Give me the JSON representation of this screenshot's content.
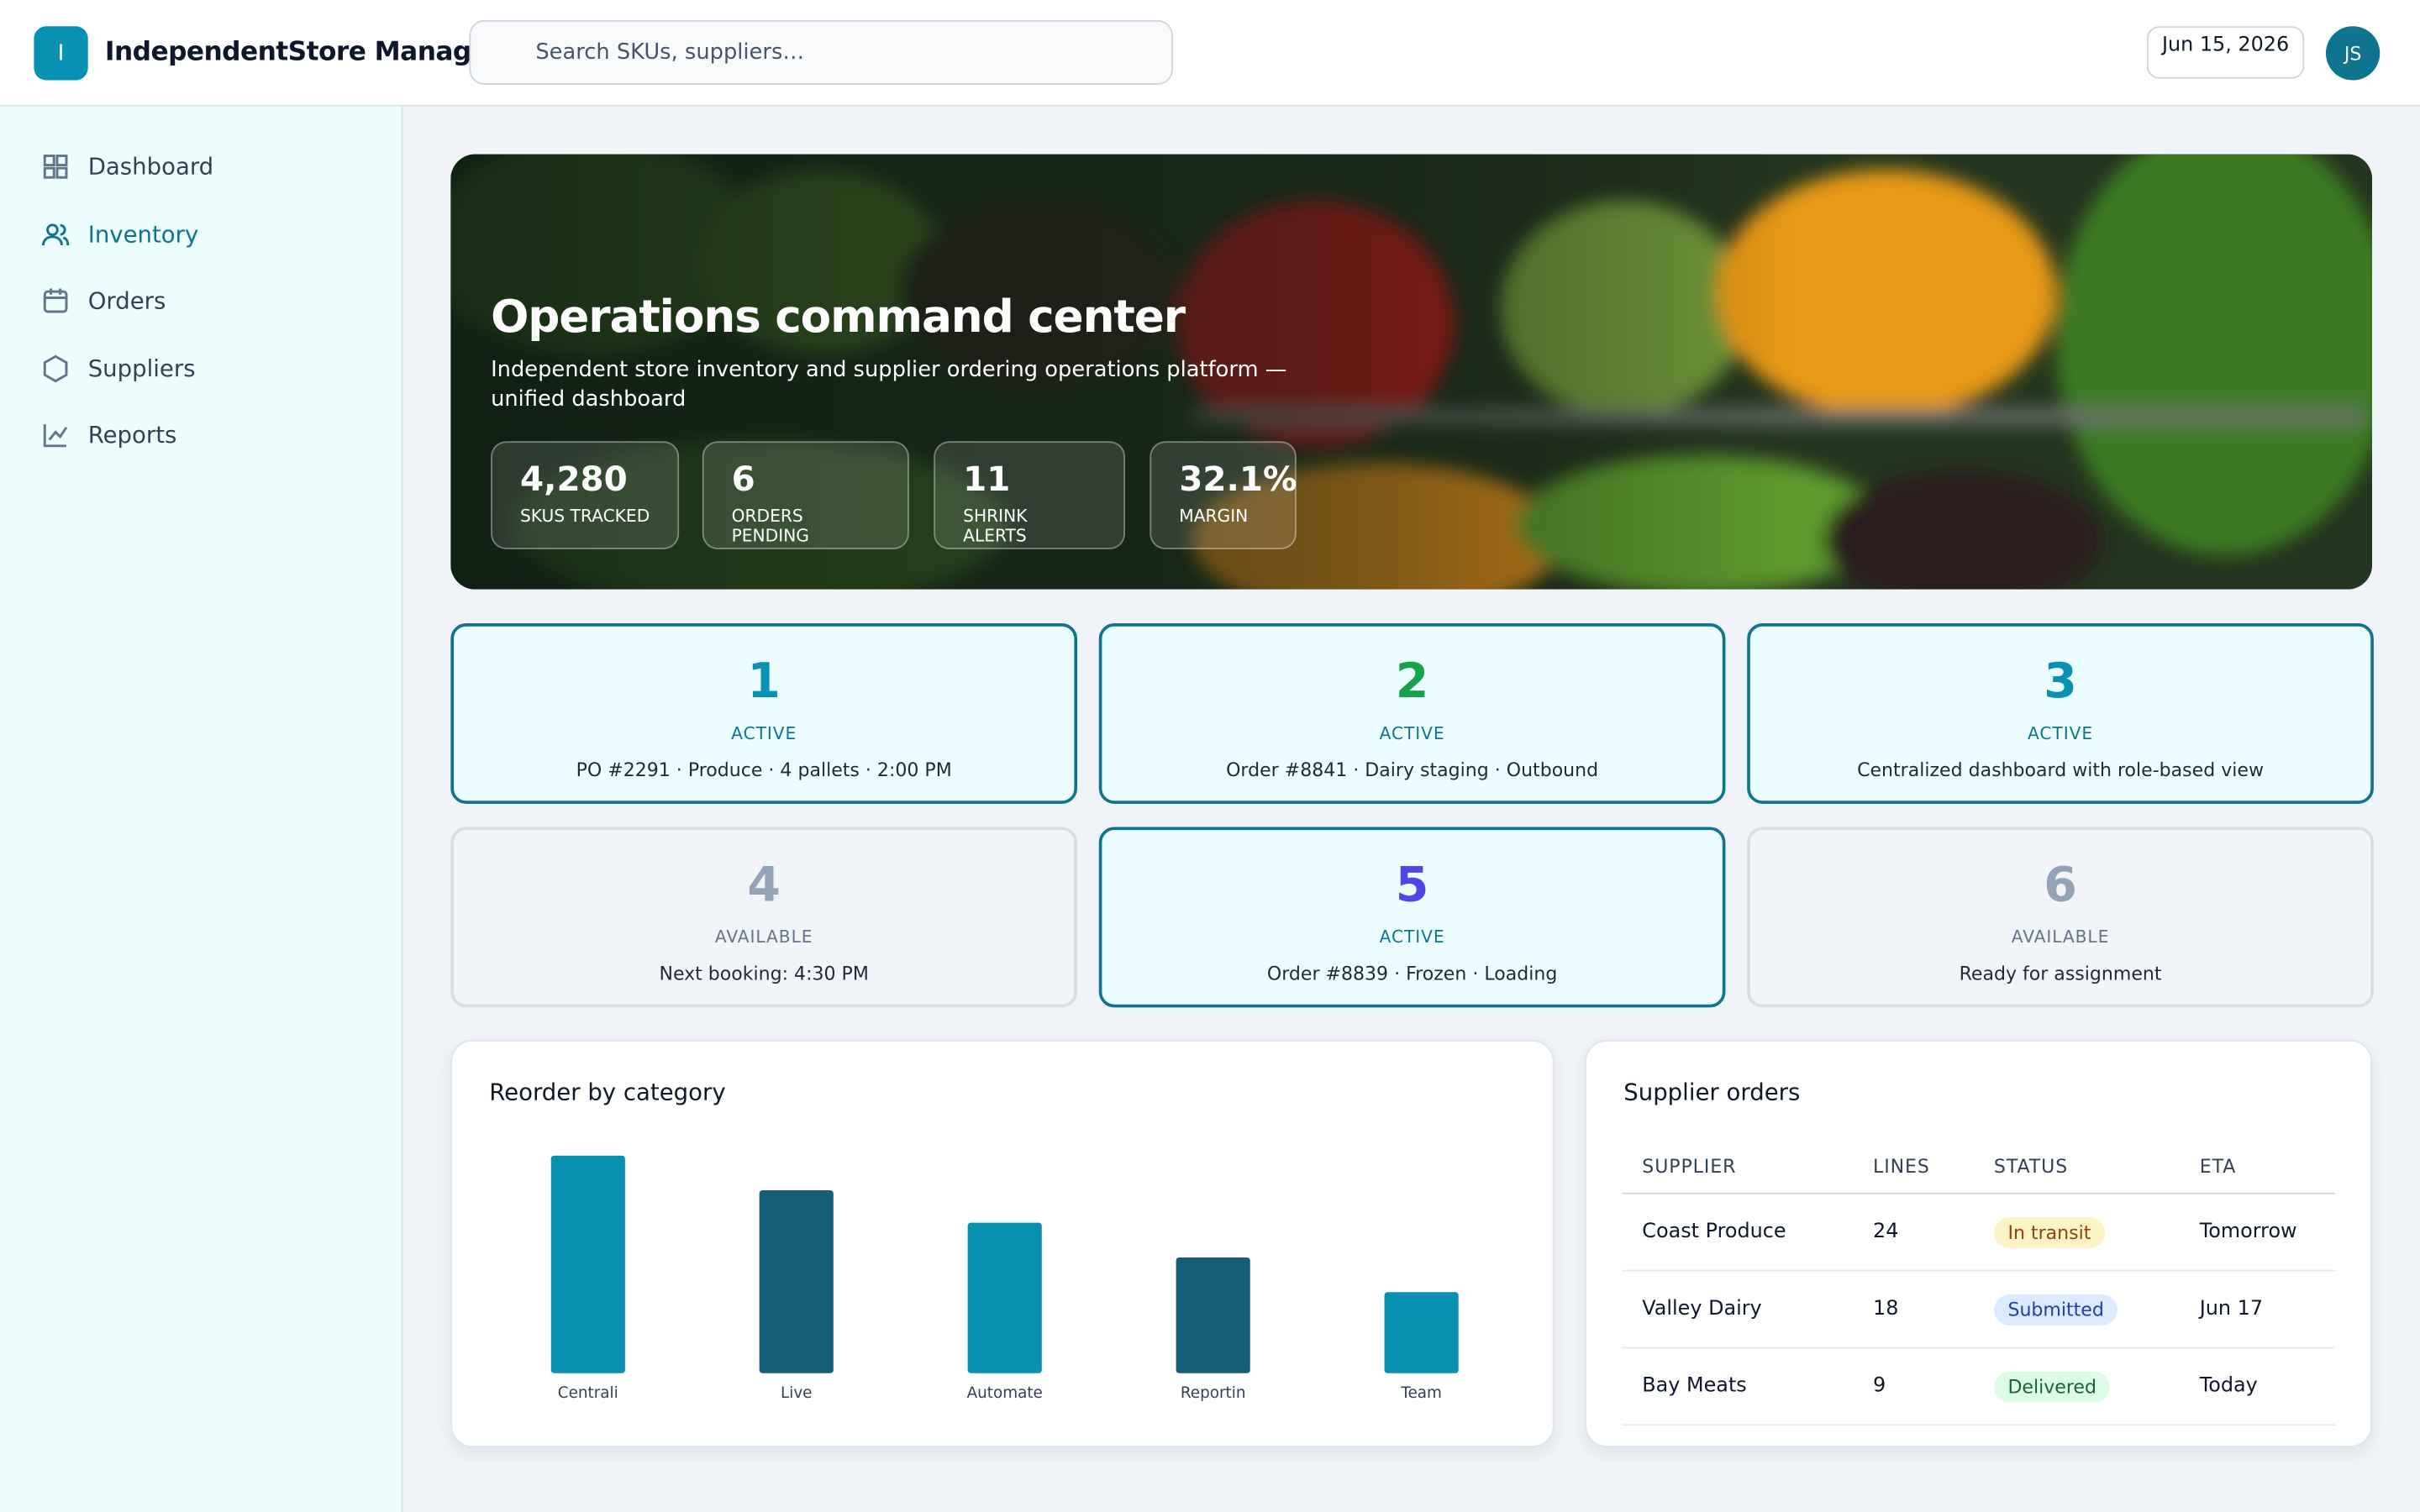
{
  "header": {
    "logo": "I",
    "brand": "IndependentStore Manager",
    "search_placeholder": "Search SKUs, suppliers…",
    "date": "Jun 15, 2026",
    "avatar": "JS"
  },
  "nav": [
    "Dashboard",
    "Inventory",
    "Orders",
    "Suppliers",
    "Reports"
  ],
  "nav_active": 1,
  "hero": {
    "title": "Operations command center",
    "subtitle": "Independent store inventory and supplier ordering operations platform — unified dashboard",
    "stats": [
      {
        "value": "4,280",
        "label": "SKUS TRACKED"
      },
      {
        "value": "6",
        "label": "ORDERS PENDING"
      },
      {
        "value": "11",
        "label": "SHRINK ALERTS"
      },
      {
        "value": "32.1%",
        "label": "MARGIN"
      }
    ]
  },
  "bays": [
    {
      "number": "1",
      "status": "ACTIVE",
      "detail": "PO #2291 · Produce · 4 pallets · 2:00 PM",
      "color": "#0891b2"
    },
    {
      "number": "2",
      "status": "ACTIVE",
      "detail": "Order #8841 · Dairy staging · Outbound",
      "color": "#16a34a"
    },
    {
      "number": "3",
      "status": "ACTIVE",
      "detail": "Centralized dashboard with role-based view",
      "color": "#0891b2"
    },
    {
      "number": "4",
      "status": "AVAILABLE",
      "detail": "Next booking: 4:30 PM",
      "color": "#94a3b8"
    },
    {
      "number": "5",
      "status": "ACTIVE",
      "detail": "Order #8839 · Frozen · Loading",
      "color": "#4f46e5"
    },
    {
      "number": "6",
      "status": "AVAILABLE",
      "detail": "Ready for assignment",
      "color": "#94a3b8"
    }
  ],
  "chart_data": {
    "type": "bar",
    "title": "Reorder by category",
    "categories": [
      "Centrali",
      "Live",
      "Automate",
      "Reportin",
      "Team"
    ],
    "values": [
      94,
      79,
      65,
      50,
      35
    ],
    "colors": [
      "#0891b2",
      "#155e75",
      "#0891b2",
      "#155e75",
      "#0891b2"
    ],
    "ylim": [
      0,
      100
    ]
  },
  "table": {
    "title": "Supplier orders",
    "columns": [
      "SUPPLIER",
      "LINES",
      "STATUS",
      "ETA"
    ],
    "rows": [
      [
        "Coast Produce",
        "24",
        "In transit",
        "Tomorrow"
      ],
      [
        "Valley Dairy",
        "18",
        "Submitted",
        "Jun 17"
      ],
      [
        "Bay Meats",
        "9",
        "Delivered",
        "Today"
      ]
    ]
  }
}
